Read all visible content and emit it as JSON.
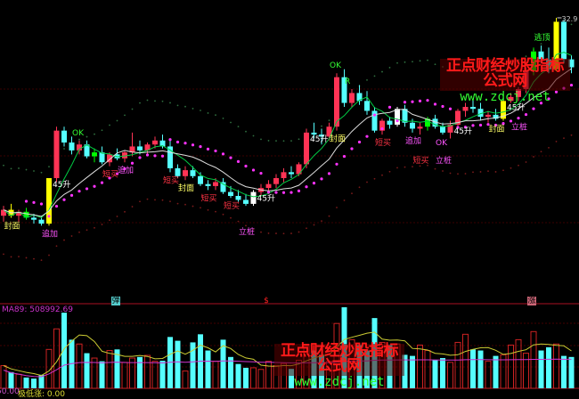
{
  "chart_data": {
    "type": "candlestick",
    "price_label": "32.9",
    "candles": [
      [
        22.9,
        23.4,
        22.6,
        23.2
      ],
      [
        23.2,
        23.5,
        22.8,
        22.9
      ],
      [
        22.9,
        23.2,
        22.6,
        23.1
      ],
      [
        23.1,
        23.3,
        22.7,
        22.8
      ],
      [
        22.8,
        23.0,
        22.5,
        22.7
      ],
      [
        22.7,
        22.9,
        22.4,
        22.5
      ],
      [
        22.5,
        24.8,
        22.4,
        24.8
      ],
      [
        24.8,
        27.4,
        24.6,
        27.2
      ],
      [
        27.2,
        27.4,
        26.4,
        26.6
      ],
      [
        26.6,
        26.9,
        26.0,
        26.2
      ],
      [
        26.2,
        26.7,
        26.0,
        26.5
      ],
      [
        26.5,
        26.7,
        25.8,
        25.9
      ],
      [
        25.9,
        26.3,
        25.6,
        26.1
      ],
      [
        26.1,
        26.4,
        25.5,
        25.6
      ],
      [
        25.6,
        26.1,
        25.4,
        26.0
      ],
      [
        26.0,
        26.3,
        25.7,
        25.8
      ],
      [
        25.8,
        26.2,
        25.6,
        26.1
      ],
      [
        26.1,
        27.1,
        25.9,
        26.4
      ],
      [
        26.4,
        26.7,
        26.0,
        26.2
      ],
      [
        26.2,
        26.6,
        25.9,
        26.5
      ],
      [
        26.5,
        26.9,
        26.3,
        26.7
      ],
      [
        26.7,
        27.0,
        26.3,
        26.4
      ],
      [
        26.4,
        26.7,
        25.1,
        25.3
      ],
      [
        25.3,
        25.5,
        24.8,
        24.9
      ],
      [
        24.9,
        25.4,
        24.7,
        25.2
      ],
      [
        25.2,
        25.4,
        24.8,
        24.9
      ],
      [
        24.9,
        25.1,
        24.4,
        24.5
      ],
      [
        24.5,
        24.7,
        24.2,
        24.4
      ],
      [
        24.4,
        24.8,
        24.2,
        24.6
      ],
      [
        24.6,
        24.8,
        24.0,
        24.1
      ],
      [
        24.1,
        24.4,
        23.8,
        23.9
      ],
      [
        23.9,
        24.2,
        23.6,
        23.7
      ],
      [
        23.7,
        24.0,
        23.4,
        23.5
      ],
      [
        23.5,
        24.2,
        23.4,
        24.1
      ],
      [
        24.1,
        24.5,
        23.9,
        24.3
      ],
      [
        24.3,
        24.7,
        24.0,
        24.5
      ],
      [
        24.5,
        25.0,
        24.3,
        24.8
      ],
      [
        24.8,
        25.3,
        24.6,
        25.1
      ],
      [
        25.1,
        25.4,
        24.8,
        25.0
      ],
      [
        25.0,
        25.6,
        24.9,
        25.5
      ],
      [
        25.5,
        27.3,
        25.3,
        27.1
      ],
      [
        27.1,
        27.6,
        26.8,
        27.0
      ],
      [
        27.0,
        27.3,
        26.5,
        26.9
      ],
      [
        26.9,
        27.6,
        26.7,
        27.4
      ],
      [
        27.4,
        30.1,
        27.2,
        29.9
      ],
      [
        29.9,
        30.3,
        28.4,
        28.6
      ],
      [
        28.6,
        29.3,
        28.4,
        29.1
      ],
      [
        29.1,
        29.5,
        28.5,
        28.7
      ],
      [
        28.7,
        29.2,
        28.0,
        28.2
      ],
      [
        28.2,
        28.4,
        27.1,
        27.2
      ],
      [
        27.2,
        27.8,
        27.0,
        27.7
      ],
      [
        27.7,
        27.9,
        27.3,
        27.5
      ],
      [
        27.5,
        28.4,
        27.4,
        28.3
      ],
      [
        28.3,
        28.5,
        27.4,
        27.6
      ],
      [
        27.6,
        27.8,
        27.1,
        27.3
      ],
      [
        27.3,
        27.6,
        27.0,
        27.4
      ],
      [
        27.4,
        27.9,
        27.2,
        27.8
      ],
      [
        27.8,
        28.0,
        27.3,
        27.4
      ],
      [
        27.4,
        27.6,
        27.0,
        27.1
      ],
      [
        27.1,
        27.7,
        26.8,
        27.5
      ],
      [
        27.5,
        28.3,
        27.4,
        28.2
      ],
      [
        28.2,
        28.6,
        27.9,
        28.4
      ],
      [
        28.4,
        28.8,
        28.1,
        28.3
      ],
      [
        28.3,
        28.6,
        27.7,
        27.9
      ],
      [
        27.9,
        28.2,
        27.6,
        28.0
      ],
      [
        28.0,
        28.3,
        27.7,
        27.8
      ],
      [
        27.8,
        28.8,
        27.7,
        28.7
      ],
      [
        28.7,
        29.1,
        28.6,
        28.9
      ],
      [
        28.9,
        29.4,
        28.7,
        29.3
      ],
      [
        29.3,
        30.4,
        29.1,
        30.2
      ],
      [
        30.2,
        31.4,
        30.0,
        31.2
      ],
      [
        31.2,
        31.5,
        30.6,
        30.8
      ],
      [
        30.8,
        31.4,
        30.1,
        30.3
      ],
      [
        30.3,
        32.9,
        30.2,
        32.7
      ],
      [
        32.7,
        32.8,
        30.6,
        30.8
      ],
      [
        30.8,
        31.0,
        30.1,
        30.4
      ]
    ],
    "special_colors": {
      "6": "#ffff00",
      "1": "#ffff00",
      "3": "#00ff00",
      "12": "#00ff00",
      "33": "#ffffff",
      "52": "#ffffff",
      "66": "#ffff00",
      "73": "#ffff00",
      "56": "#00ff00",
      "70": "#00ff00"
    },
    "colors": {
      "up": "#ff3355",
      "down": "#55ffff",
      "ma_short": "#00cc44",
      "ma_long": "#dddddd",
      "dots": "#ff33ff",
      "band_upper": "#2f6f3f",
      "band_lower": "#7a1a1a",
      "vol_up": "#cc2222",
      "vol_down": "#55ffff",
      "vol_ma": "#cccc33",
      "vol_ma89": "#cc33cc"
    },
    "signals": [
      {
        "i": 1,
        "text": "封面",
        "color": "#ffff66",
        "pos": "below"
      },
      {
        "i": 6,
        "text": "追加",
        "color": "#ff55ff",
        "pos": "below"
      },
      {
        "i": 6,
        "text": "45升",
        "color": "#ffffff",
        "pos": "right"
      },
      {
        "i": 10,
        "text": "OK",
        "color": "#33ff33",
        "pos": "above"
      },
      {
        "i": 14,
        "text": "短买",
        "color": "#ff3344",
        "pos": "below"
      },
      {
        "i": 16,
        "text": "追加",
        "color": "#ff55ff",
        "pos": "below"
      },
      {
        "i": 22,
        "text": "短买",
        "color": "#ff3344",
        "pos": "below"
      },
      {
        "i": 24,
        "text": "封面",
        "color": "#ffff66",
        "pos": "below"
      },
      {
        "i": 27,
        "text": "短买",
        "color": "#ff3344",
        "pos": "below"
      },
      {
        "i": 30,
        "text": "短买",
        "color": "#ff3344",
        "pos": "below"
      },
      {
        "i": 33,
        "text": "45升",
        "color": "#ffffff",
        "pos": "right"
      },
      {
        "i": 32,
        "text": "立桩",
        "color": "#ff55ff",
        "pos": "low"
      },
      {
        "i": 40,
        "text": "45升",
        "color": "#ffffff",
        "pos": "right"
      },
      {
        "i": 44,
        "text": "OK",
        "color": "#33ff33",
        "pos": "above"
      },
      {
        "i": 46,
        "text": "R",
        "color": "#33ff33",
        "pos": "above"
      },
      {
        "i": 44,
        "text": "封面",
        "color": "#ffff66",
        "pos": "below"
      },
      {
        "i": 50,
        "text": "短买",
        "color": "#ff3344",
        "pos": "below"
      },
      {
        "i": 54,
        "text": "追加",
        "color": "#ff55ff",
        "pos": "below"
      },
      {
        "i": 55,
        "text": "短买",
        "color": "#ff3344",
        "pos": "low"
      },
      {
        "i": 58,
        "text": "OK",
        "color": "#ff55ff",
        "pos": "below"
      },
      {
        "i": 58,
        "text": "立桩",
        "color": "#ff55ff",
        "pos": "low"
      },
      {
        "i": 59,
        "text": "45升",
        "color": "#ffffff",
        "pos": "right"
      },
      {
        "i": 66,
        "text": "45升",
        "color": "#ffffff",
        "pos": "right"
      },
      {
        "i": 65,
        "text": "封面",
        "color": "#ffff66",
        "pos": "below"
      },
      {
        "i": 68,
        "text": "立桩",
        "color": "#ff55ff",
        "pos": "low"
      },
      {
        "i": 71,
        "text": "逃顶",
        "color": "#33ff33",
        "pos": "above"
      }
    ],
    "volume": [
      420000,
      300000,
      260000,
      200000,
      180000,
      250000,
      720000,
      1100000,
      1400000,
      900000,
      820000,
      650000,
      560000,
      500000,
      700000,
      720000,
      480000,
      560000,
      580000,
      610000,
      500000,
      510000,
      950000,
      880000,
      320000,
      850000,
      1000000,
      700000,
      500000,
      900000,
      580000,
      450000,
      380000,
      380000,
      350000,
      500000,
      420000,
      460000,
      360000,
      520000,
      780000,
      700000,
      620000,
      500000,
      1200000,
      1500000,
      900000,
      800000,
      700000,
      1300000,
      850000,
      800000,
      820000,
      620000,
      600000,
      800000,
      700000,
      520000,
      560000,
      480000,
      850000,
      1000000,
      720000,
      700000,
      500000,
      600000,
      620000,
      800000,
      900000,
      650000,
      1050000,
      700000,
      760000,
      820000,
      600000,
      580000
    ],
    "volume_max": 1500000
  },
  "volume_panel": {
    "ma89_label": "MA89: 508992.69",
    "bottom_left_value": "50.00",
    "bottom_indicator": "极低涨: 0.00",
    "tags": [
      {
        "text": "弹",
        "color": "#55cccc"
      },
      {
        "text": "$",
        "color": "#ff2222"
      },
      {
        "text": "涨",
        "color": "#cc6677"
      }
    ]
  },
  "watermark": {
    "cn": "正点财经炒股指标公式网",
    "url": "www.zdcj.net"
  }
}
